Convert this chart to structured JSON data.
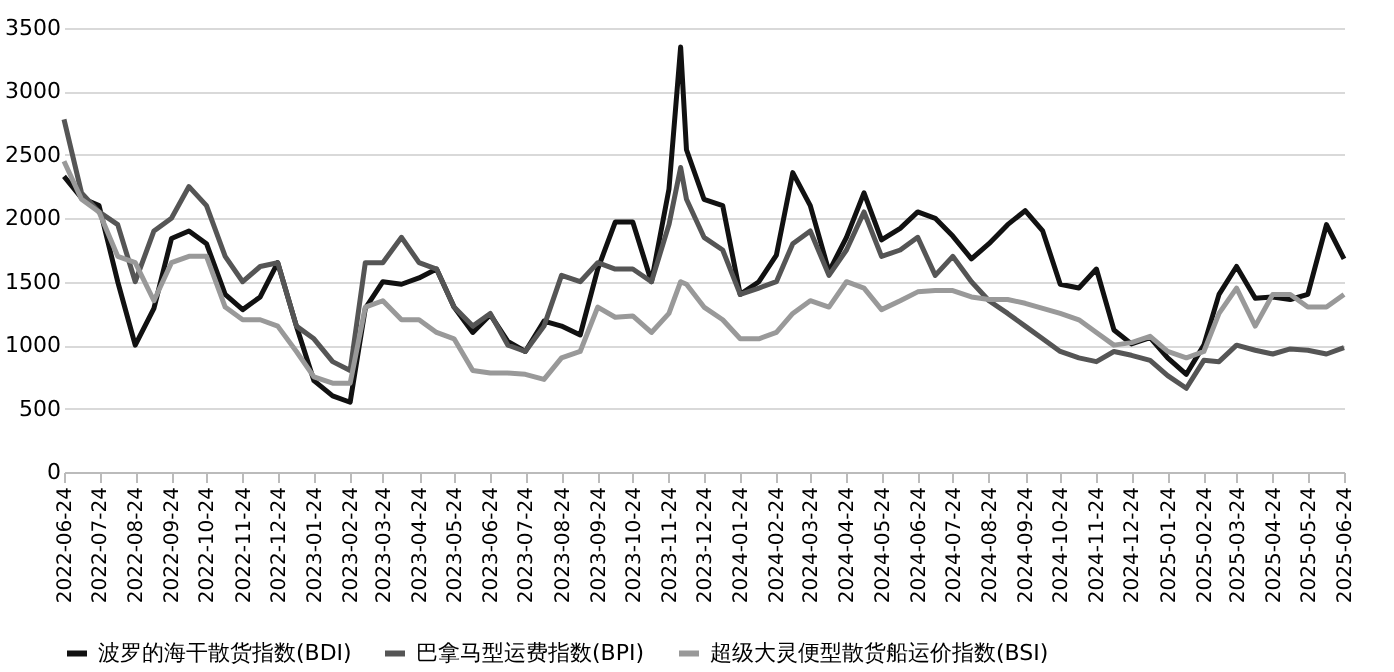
{
  "chart_data": {
    "type": "line",
    "x": [
      "2022-06-24",
      "2022-07-09",
      "2022-07-24",
      "2022-08-09",
      "2022-08-24",
      "2022-09-09",
      "2022-09-24",
      "2022-10-09",
      "2022-10-24",
      "2022-11-09",
      "2022-11-24",
      "2022-12-09",
      "2022-12-24",
      "2023-01-09",
      "2023-01-24",
      "2023-02-09",
      "2023-02-24",
      "2023-03-09",
      "2023-03-24",
      "2023-04-09",
      "2023-04-24",
      "2023-05-09",
      "2023-05-24",
      "2023-06-09",
      "2023-06-24",
      "2023-07-09",
      "2023-07-24",
      "2023-08-09",
      "2023-08-24",
      "2023-09-09",
      "2023-09-24",
      "2023-10-09",
      "2023-10-24",
      "2023-11-09",
      "2023-11-24",
      "2023-12-04",
      "2023-12-09",
      "2023-12-24",
      "2024-01-09",
      "2024-01-24",
      "2024-02-09",
      "2024-02-24",
      "2024-03-09",
      "2024-03-24",
      "2024-04-09",
      "2024-04-24",
      "2024-05-09",
      "2024-05-24",
      "2024-06-09",
      "2024-06-24",
      "2024-07-09",
      "2024-07-24",
      "2024-08-09",
      "2024-08-24",
      "2024-09-09",
      "2024-09-24",
      "2024-10-09",
      "2024-10-24",
      "2024-11-09",
      "2024-11-24",
      "2024-12-09",
      "2024-12-24",
      "2025-01-09",
      "2025-01-24",
      "2025-02-09",
      "2025-02-24",
      "2025-03-09",
      "2025-03-24",
      "2025-04-09",
      "2025-04-24",
      "2025-05-09",
      "2025-05-24",
      "2025-06-09",
      "2025-06-24"
    ],
    "series": [
      {
        "name": "波罗的海干散货指数(BDI)",
        "color": "#111111",
        "values": [
          2330,
          2160,
          2100,
          1500,
          1000,
          1290,
          1840,
          1900,
          1800,
          1400,
          1280,
          1380,
          1650,
          1150,
          720,
          600,
          550,
          1290,
          1500,
          1480,
          1530,
          1600,
          1300,
          1100,
          1240,
          1030,
          950,
          1190,
          1150,
          1080,
          1600,
          1970,
          1970,
          1500,
          2230,
          3350,
          2540,
          2150,
          2100,
          1400,
          1500,
          1710,
          2360,
          2100,
          1580,
          1850,
          2200,
          1830,
          1920,
          2050,
          2000,
          1860,
          1680,
          1800,
          1950,
          2060,
          1900,
          1480,
          1450,
          1600,
          1120,
          1010,
          1060,
          900,
          770,
          1000,
          1400,
          1620,
          1370,
          1380,
          1360,
          1400,
          1950,
          1680
        ]
      },
      {
        "name": "巴拿马型运费指数(BPI)",
        "color": "#555555",
        "values": [
          2780,
          2200,
          2050,
          1950,
          1500,
          1900,
          2000,
          2250,
          2100,
          1700,
          1500,
          1620,
          1650,
          1150,
          1050,
          870,
          800,
          1650,
          1650,
          1850,
          1650,
          1600,
          1300,
          1150,
          1250,
          1000,
          950,
          1150,
          1550,
          1500,
          1650,
          1600,
          1600,
          1500,
          1950,
          2400,
          2150,
          1850,
          1750,
          1400,
          1450,
          1500,
          1800,
          1900,
          1550,
          1750,
          2050,
          1700,
          1750,
          1850,
          1550,
          1700,
          1500,
          1350,
          1250,
          1150,
          1050,
          950,
          900,
          870,
          950,
          920,
          880,
          760,
          660,
          880,
          870,
          1000,
          960,
          930,
          970,
          960,
          930,
          980
        ]
      },
      {
        "name": "超级大灵便型散货船运价指数(BSI)",
        "color": "#999999",
        "values": [
          2450,
          2150,
          2050,
          1700,
          1650,
          1350,
          1650,
          1700,
          1700,
          1300,
          1200,
          1200,
          1150,
          950,
          750,
          700,
          700,
          1300,
          1350,
          1200,
          1200,
          1100,
          1050,
          800,
          780,
          780,
          770,
          730,
          900,
          950,
          1300,
          1220,
          1230,
          1100,
          1250,
          1500,
          1480,
          1300,
          1200,
          1050,
          1050,
          1100,
          1250,
          1350,
          1300,
          1500,
          1450,
          1280,
          1350,
          1420,
          1430,
          1430,
          1380,
          1360,
          1360,
          1330,
          1290,
          1250,
          1200,
          1100,
          1000,
          1020,
          1070,
          950,
          900,
          950,
          1250,
          1450,
          1150,
          1400,
          1400,
          1300,
          1300,
          1400
        ]
      }
    ],
    "xlim": [
      "2022-06-24",
      "2025-06-24"
    ],
    "xticks": [
      "2022-06-24",
      "2022-07-24",
      "2022-08-24",
      "2022-09-24",
      "2022-10-24",
      "2022-11-24",
      "2022-12-24",
      "2023-01-24",
      "2023-02-24",
      "2023-03-24",
      "2023-04-24",
      "2023-05-24",
      "2023-06-24",
      "2023-07-24",
      "2023-08-24",
      "2023-09-24",
      "2023-10-24",
      "2023-11-24",
      "2023-12-24",
      "2024-01-24",
      "2024-02-24",
      "2024-03-24",
      "2024-04-24",
      "2024-05-24",
      "2024-06-24",
      "2024-07-24",
      "2024-08-24",
      "2024-09-24",
      "2024-10-24",
      "2024-11-24",
      "2024-12-24",
      "2025-01-24",
      "2025-02-24",
      "2025-03-24",
      "2025-04-24",
      "2025-05-24",
      "2025-06-24"
    ],
    "ylim": [
      0,
      3500
    ],
    "yticks": [
      0,
      500,
      1000,
      1500,
      2000,
      2500,
      3000,
      3500
    ],
    "grid": "y",
    "legend": "bottom",
    "line_style": "solid",
    "marker": "none"
  }
}
